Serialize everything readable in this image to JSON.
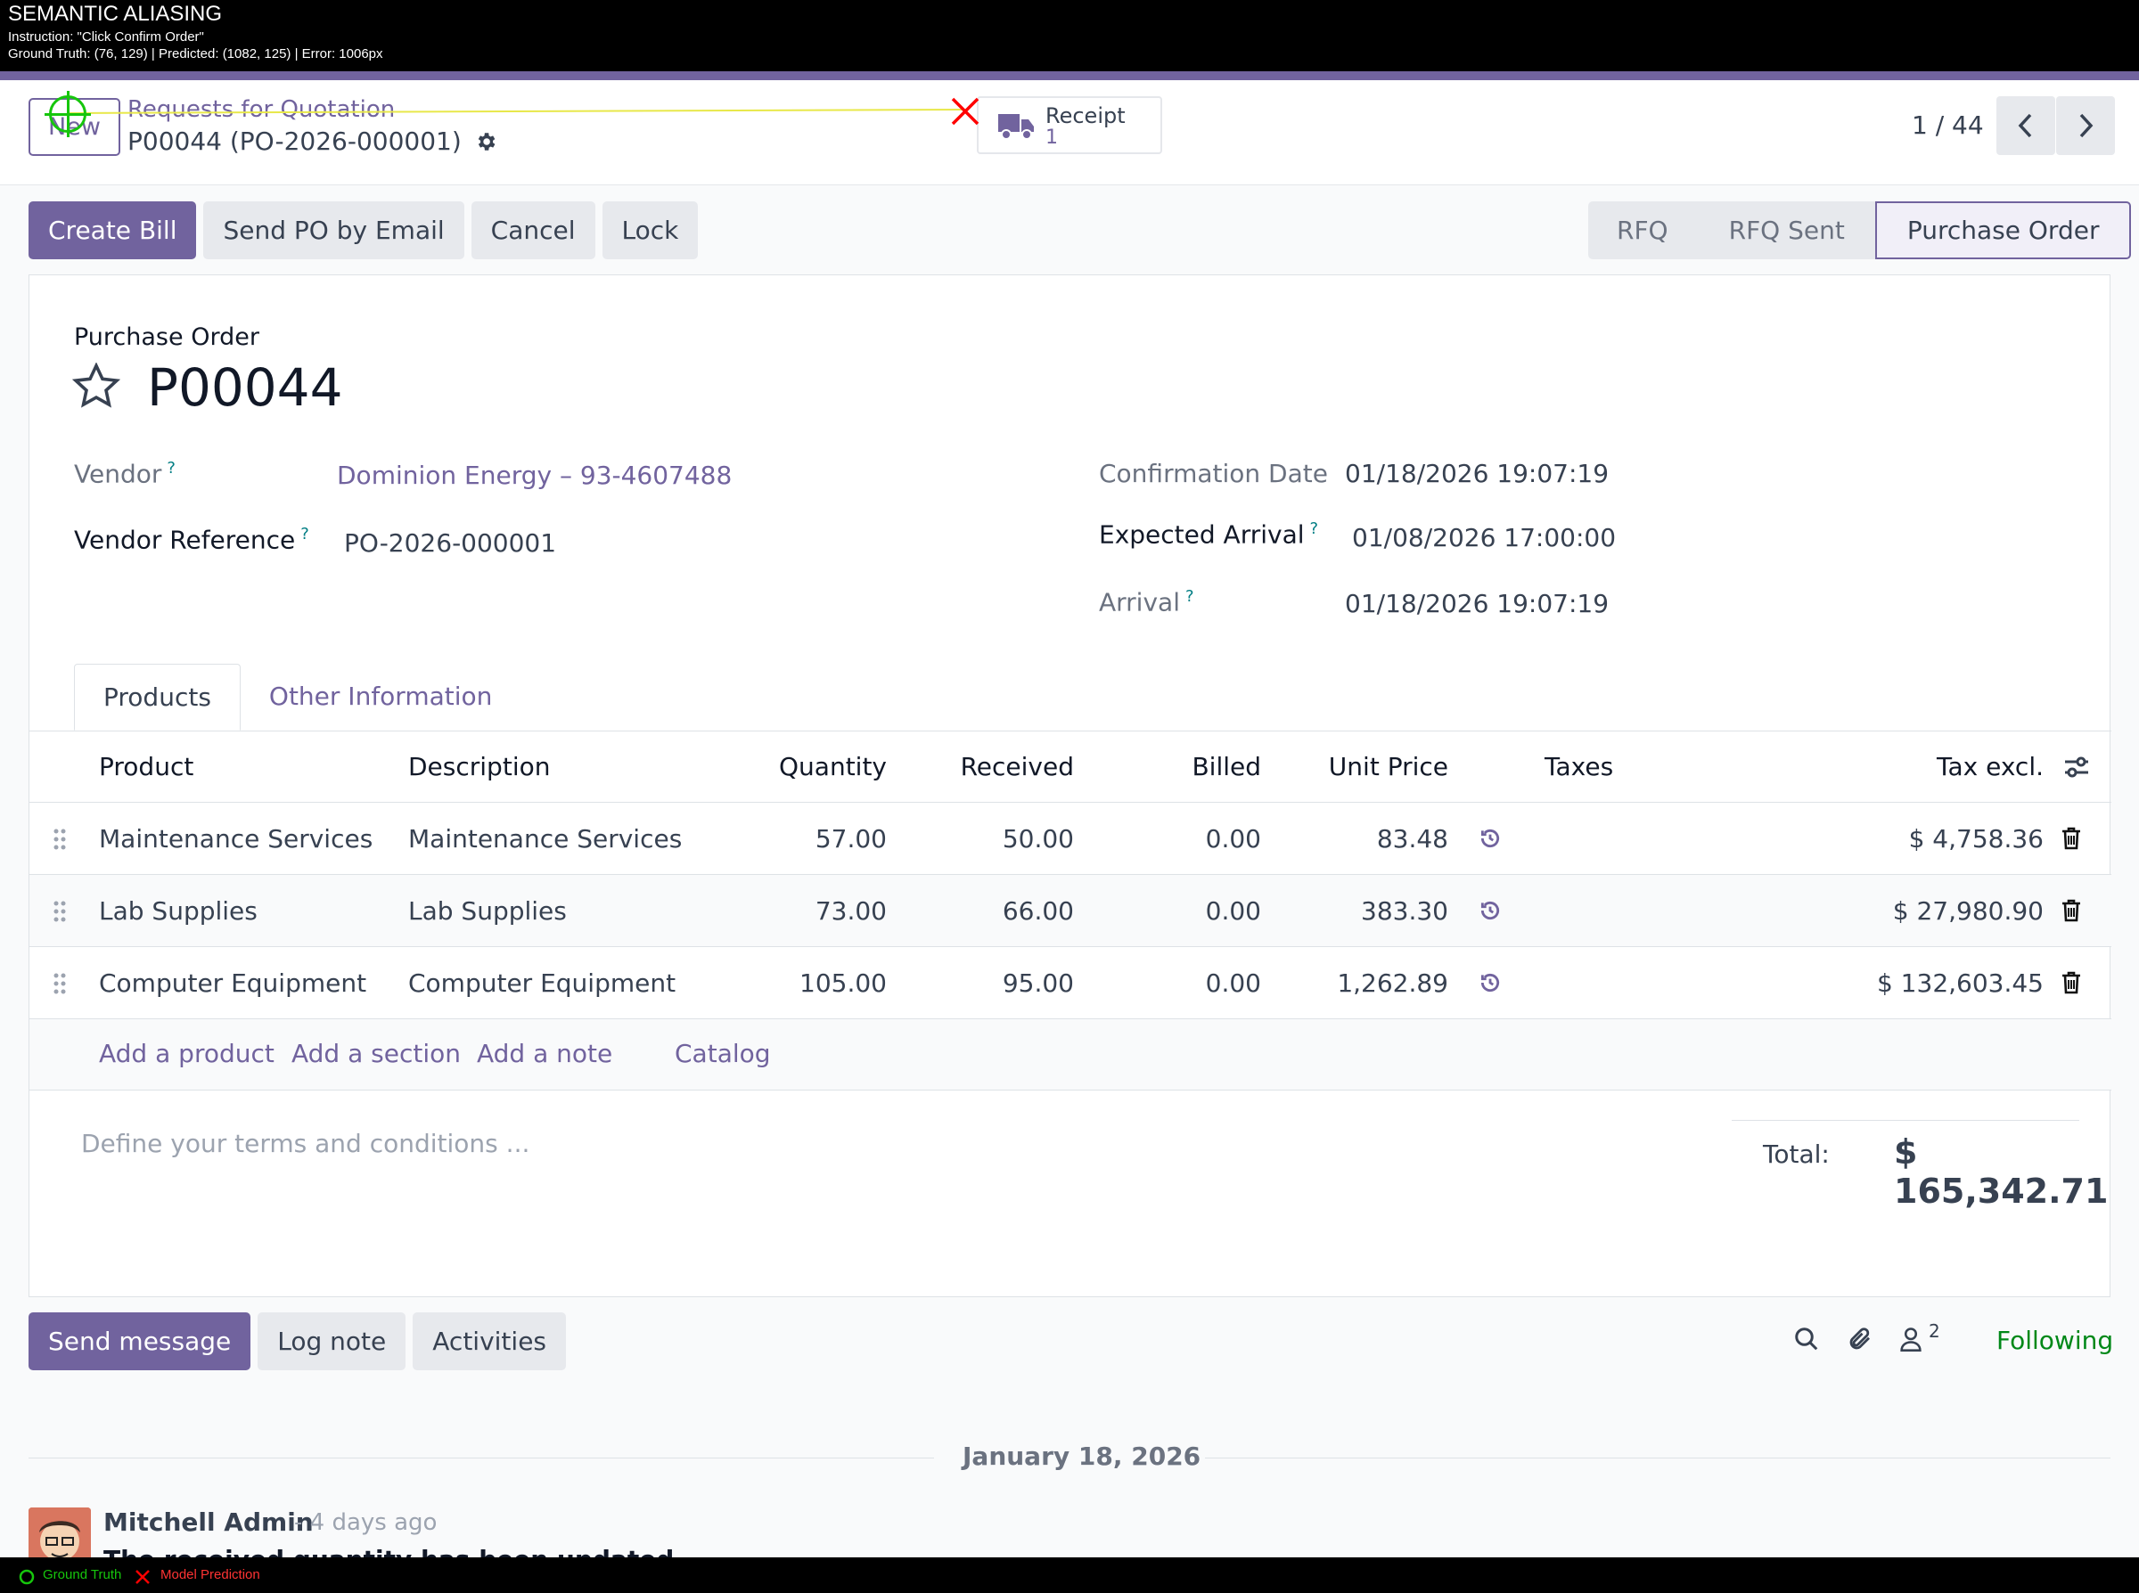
{
  "annotation": {
    "title": "SEMANTIC ALIASING",
    "instruction": "Instruction: \"Click Confirm Order\"",
    "metrics": "Ground Truth: (76, 129)  |  Predicted: (1082, 125)  |  Error: 1006px",
    "legend_gt": "Ground Truth",
    "legend_pred": "Model Prediction"
  },
  "control": {
    "new_label": "New",
    "breadcrumb": "Requests for Quotation",
    "record_title": "P00044 (PO-2026-000001)",
    "receipt_label": "Receipt",
    "receipt_count": "1",
    "pager": "1 / 44"
  },
  "actions": {
    "create_bill": "Create Bill",
    "send_po": "Send PO by Email",
    "cancel": "Cancel",
    "lock": "Lock"
  },
  "stages": [
    "RFQ",
    "RFQ Sent",
    "Purchase Order"
  ],
  "form": {
    "doc_type": "Purchase Order",
    "name": "P00044",
    "vendor_label": "Vendor",
    "vendor_value": "Dominion Energy – 93-4607488",
    "vendor_ref_label": "Vendor Reference",
    "vendor_ref_value": "PO-2026-000001",
    "confirmation_label": "Confirmation Date",
    "confirmation_value": "01/18/2026 19:07:19",
    "expected_label": "Expected Arrival",
    "expected_value": "01/08/2026 17:00:00",
    "arrival_label": "Arrival",
    "arrival_value": "01/18/2026 19:07:19",
    "help_mark": "?"
  },
  "tabs": [
    "Products",
    "Other Information"
  ],
  "table": {
    "headers": [
      "Product",
      "Description",
      "Quantity",
      "Received",
      "Billed",
      "Unit Price",
      "Taxes",
      "Tax excl."
    ],
    "rows": [
      {
        "product": "Maintenance Services",
        "description": "Maintenance Services",
        "quantity": "57.00",
        "received": "50.00",
        "billed": "0.00",
        "unit_price": "83.48",
        "subtotal": "$ 4,758.36"
      },
      {
        "product": "Lab Supplies",
        "description": "Lab Supplies",
        "quantity": "73.00",
        "received": "66.00",
        "billed": "0.00",
        "unit_price": "383.30",
        "subtotal": "$ 27,980.90"
      },
      {
        "product": "Computer Equipment",
        "description": "Computer Equipment",
        "quantity": "105.00",
        "received": "95.00",
        "billed": "0.00",
        "unit_price": "1,262.89",
        "subtotal": "$ 132,603.45"
      }
    ],
    "add_product": "Add a product",
    "add_section": "Add a section",
    "add_note": "Add a note",
    "catalog": "Catalog"
  },
  "terms_placeholder": "Define your terms and conditions ...",
  "total_label": "Total:",
  "total_value": "$ 165,342.71",
  "chatter": {
    "send_message": "Send message",
    "log_note": "Log note",
    "activities": "Activities",
    "followers_count": "2",
    "following": "Following",
    "date": "January 18, 2026",
    "author": "Mitchell Admin",
    "ago": "- 4 days ago",
    "message": "The received quantity has been updated."
  },
  "colors": {
    "accent": "#71639e",
    "following": "#008818",
    "ground_truth": "#16c60c",
    "prediction": "#ff0000"
  }
}
